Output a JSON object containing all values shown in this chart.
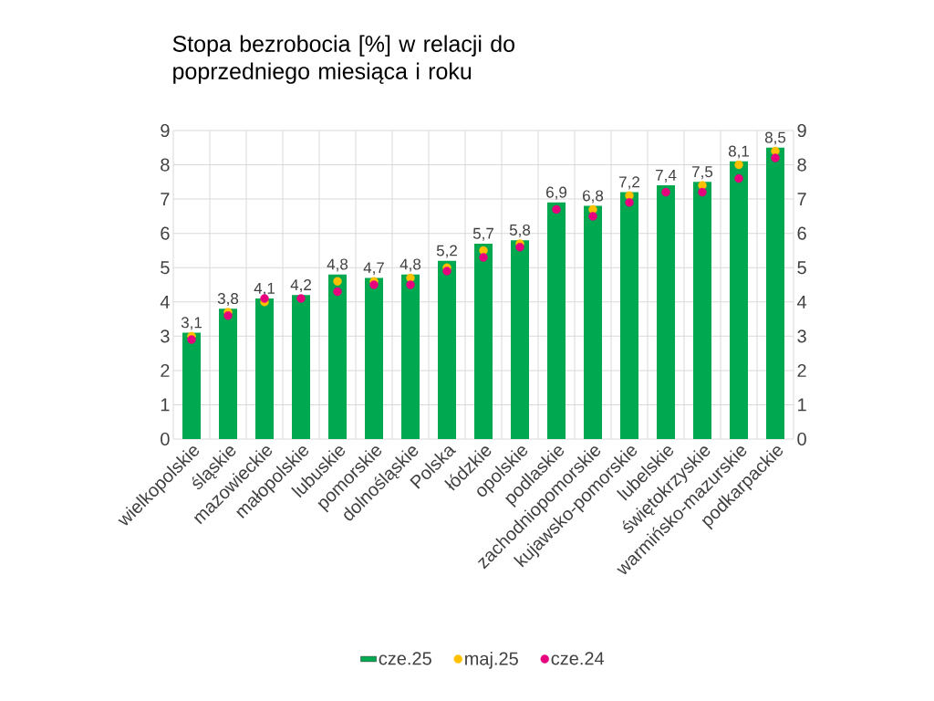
{
  "chart_data": {
    "type": "bar",
    "title": "Stopa bezrobocia [%] w relacji do poprzedniego miesiąca i roku",
    "categories": [
      "wielkopolskie",
      "śląskie",
      "mazowieckie",
      "małopolskie",
      "lubuskie",
      "pomorskie",
      "dolnośląskie",
      "Polska",
      "łódzkie",
      "opolskie",
      "podlaskie",
      "zachodniopomorskie",
      "kujawsko-pomorskie",
      "lubelskie",
      "świętokrzyskie",
      "warmińsko-mazurskie",
      "podkarpackie"
    ],
    "series": [
      {
        "name": "cze.25",
        "color": "#00a84f",
        "values": [
          3.1,
          3.8,
          4.1,
          4.2,
          4.8,
          4.7,
          4.8,
          5.2,
          5.7,
          5.8,
          6.9,
          6.8,
          7.2,
          7.4,
          7.5,
          8.1,
          8.5
        ],
        "value_labels": [
          "3,1",
          "3,8",
          "4,1",
          "4,2",
          "4,8",
          "4,7",
          "4,8",
          "5,2",
          "5,7",
          "5,8",
          "6,9",
          "6,8",
          "7,2",
          "7,4",
          "7,5",
          "8,1",
          "8,5"
        ]
      },
      {
        "name": "maj.25",
        "type": "scatter",
        "color": "#ffc000",
        "values": [
          3.0,
          3.7,
          4.0,
          null,
          4.6,
          4.6,
          4.7,
          5.0,
          5.5,
          5.7,
          null,
          6.7,
          7.1,
          null,
          7.4,
          8.0,
          8.4
        ]
      },
      {
        "name": "cze.24",
        "type": "scatter",
        "color": "#e6007e",
        "values": [
          2.9,
          3.6,
          4.1,
          4.1,
          4.3,
          4.5,
          4.5,
          4.9,
          5.3,
          5.6,
          6.7,
          6.5,
          6.9,
          7.2,
          7.2,
          7.6,
          8.2
        ]
      }
    ],
    "ylim": [
      0,
      9
    ],
    "yticks": [
      0,
      1,
      2,
      3,
      4,
      5,
      6,
      7,
      8,
      9
    ],
    "y2lim": [
      0,
      9
    ],
    "y2ticks": [
      0,
      1,
      2,
      3,
      4,
      5,
      6,
      7,
      8,
      9
    ],
    "grid": true,
    "legend": "bottom",
    "marker": "circle"
  }
}
